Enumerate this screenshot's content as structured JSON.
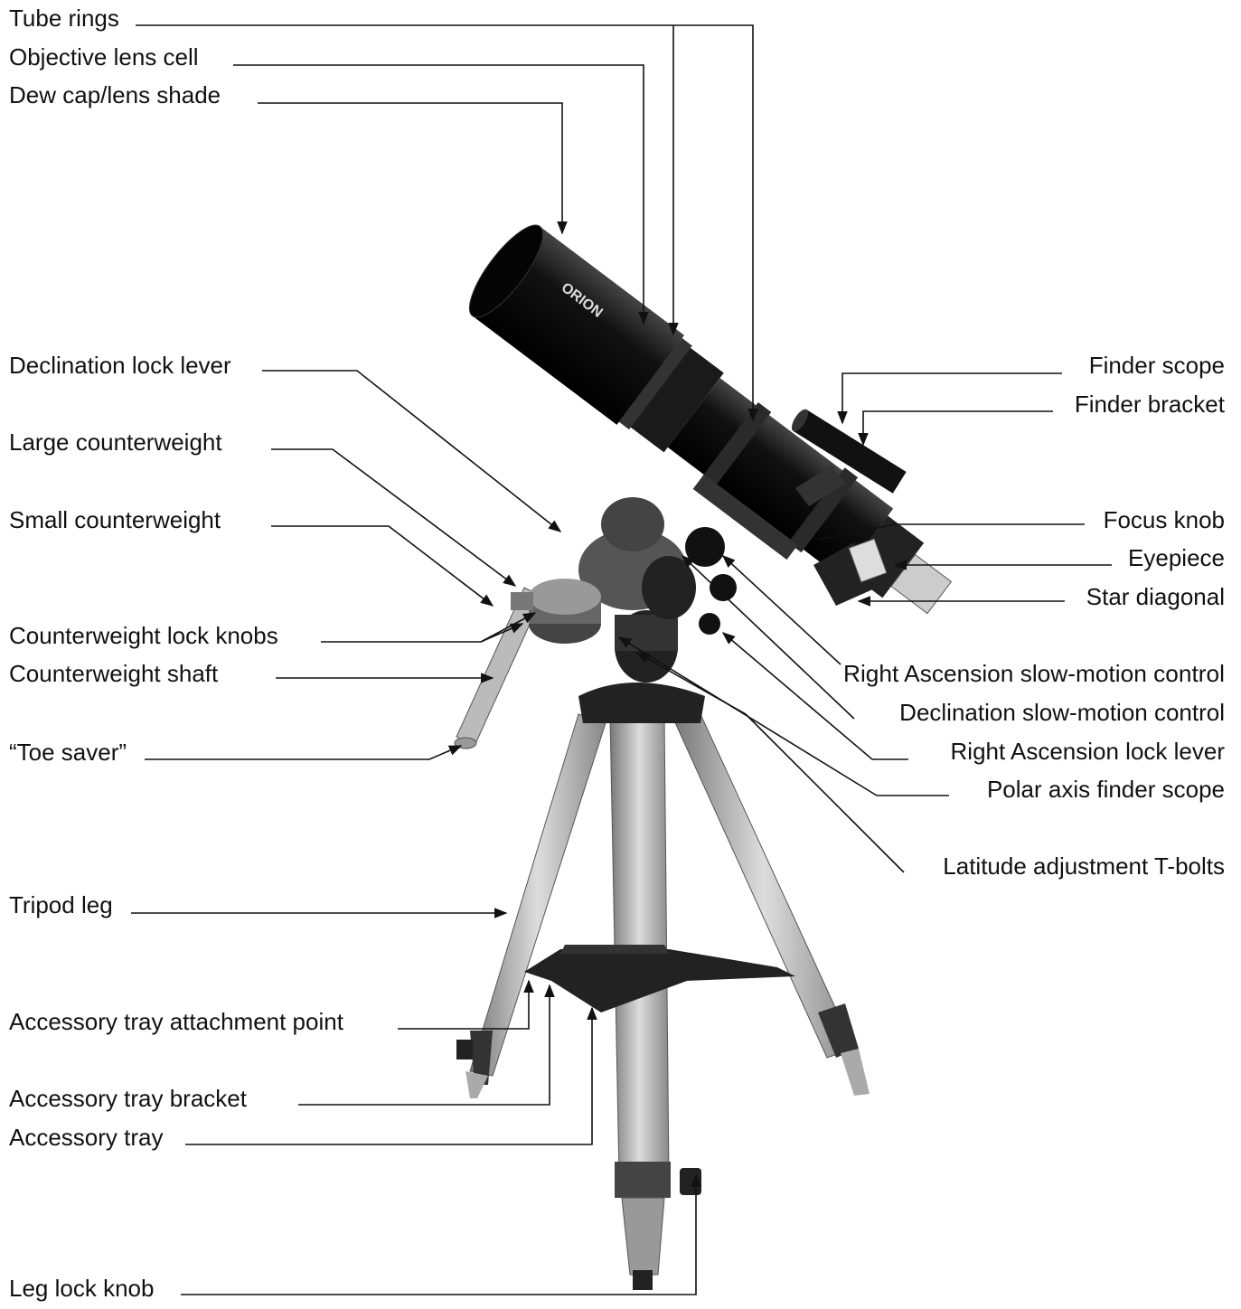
{
  "labels": {
    "left": [
      "Tube rings",
      "Objective lens cell",
      "Dew cap/lens shade",
      "Declination lock lever",
      "Large counterweight",
      "Small counterweight",
      "Counterweight lock knobs",
      "Counterweight shaft",
      "“Toe saver”",
      "Tripod leg",
      "Accessory tray attachment point",
      "Accessory tray bracket",
      "Accessory tray",
      "Leg lock knob"
    ],
    "right": [
      "Finder scope",
      "Finder bracket",
      "Focus knob",
      "Eyepiece",
      "Star diagonal",
      "Right Ascension slow-motion control",
      "Declination slow-motion control",
      "Right Ascension lock lever",
      "Polar axis finder scope",
      "Latitude adjustment T-bolts"
    ]
  }
}
